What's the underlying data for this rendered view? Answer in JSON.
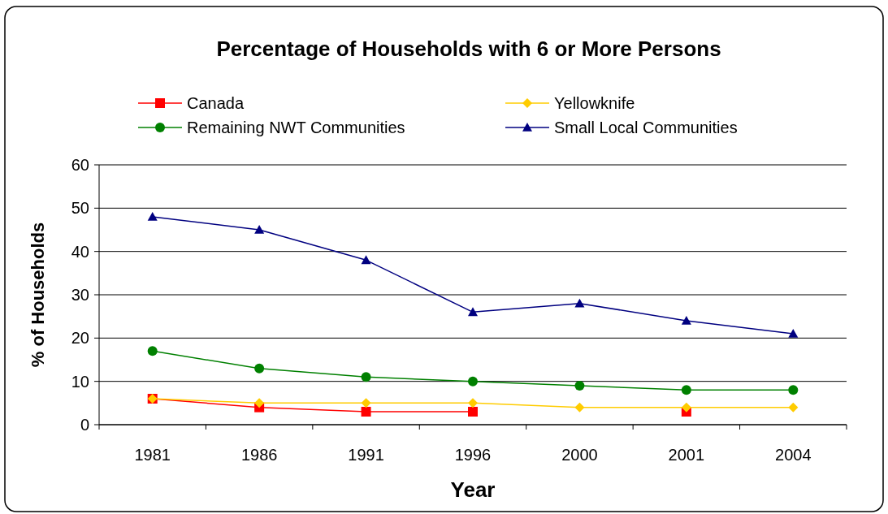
{
  "chart_data": {
    "type": "line",
    "title": "Percentage of Households with 6 or More Persons",
    "xlabel": "Year",
    "ylabel": "% of Households",
    "categories": [
      "1981",
      "1986",
      "1991",
      "1996",
      "2000",
      "2001",
      "2004"
    ],
    "series": [
      {
        "name": "Canada",
        "color": "#ff0000",
        "marker": "square",
        "values": [
          6,
          4,
          3,
          3,
          null,
          3,
          null
        ]
      },
      {
        "name": "Yellowknife",
        "color": "#ffcc00",
        "marker": "diamond",
        "values": [
          6,
          5,
          5,
          5,
          4,
          4,
          4
        ]
      },
      {
        "name": "Remaining NWT Communities",
        "color": "#008000",
        "marker": "circle",
        "values": [
          17,
          13,
          11,
          10,
          9,
          8,
          8
        ]
      },
      {
        "name": "Small Local Communities",
        "color": "#000080",
        "marker": "triangle",
        "values": [
          48,
          45,
          38,
          26,
          28,
          24,
          21
        ]
      }
    ],
    "ylim": [
      0,
      60
    ],
    "yticks": [
      0,
      10,
      20,
      30,
      40,
      50,
      60
    ],
    "grid": "y",
    "legend": "top"
  }
}
